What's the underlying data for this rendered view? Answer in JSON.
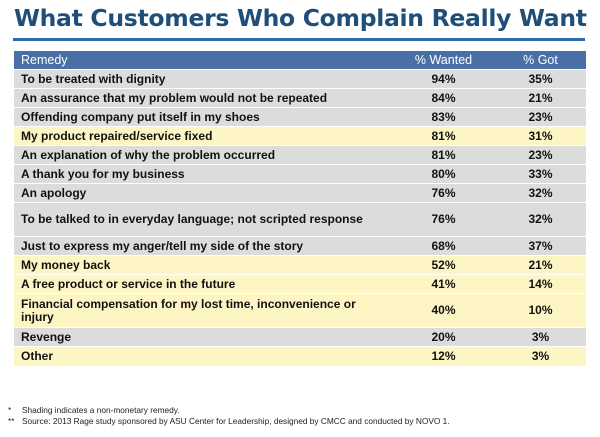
{
  "title": "What Customers Who Complain Really Want",
  "table_headers": [
    "Remedy",
    "% Wanted",
    "% Got"
  ],
  "chart_data": {
    "type": "table",
    "title": "What Customers Who Complain Really Want",
    "columns": [
      "Remedy",
      "% Wanted",
      "% Got"
    ],
    "rows": [
      {
        "remedy": "To be treated with dignity",
        "wanted": "94%",
        "got": "35%",
        "shaded": false
      },
      {
        "remedy": "An assurance that my problem would not be repeated",
        "wanted": "84%",
        "got": "21%",
        "shaded": false
      },
      {
        "remedy": "Offending company put itself in my shoes",
        "wanted": "83%",
        "got": "23%",
        "shaded": false
      },
      {
        "remedy": "My product repaired/service fixed",
        "wanted": "81%",
        "got": "31%",
        "shaded": true
      },
      {
        "remedy": "An explanation of why the problem occurred",
        "wanted": "81%",
        "got": "23%",
        "shaded": false
      },
      {
        "remedy": "A thank you for my business",
        "wanted": "80%",
        "got": "33%",
        "shaded": false
      },
      {
        "remedy": "An apology",
        "wanted": "76%",
        "got": "32%",
        "shaded": false
      },
      {
        "remedy": "To be talked to in everyday language; not scripted response",
        "wanted": "76%",
        "got": "32%",
        "shaded": false
      },
      {
        "remedy": "Just to express my anger/tell my side of the story",
        "wanted": "68%",
        "got": "37%",
        "shaded": false
      },
      {
        "remedy": "My money back",
        "wanted": "52%",
        "got": "21%",
        "shaded": true
      },
      {
        "remedy": "A free product or service in the future",
        "wanted": "41%",
        "got": "14%",
        "shaded": true
      },
      {
        "remedy": "Financial compensation for my lost time, inconvenience or injury",
        "wanted": "40%",
        "got": "10%",
        "shaded": true
      },
      {
        "remedy": "Revenge",
        "wanted": "20%",
        "got": "3%",
        "shaded": false
      },
      {
        "remedy": "Other",
        "wanted": "12%",
        "got": "3%",
        "shaded": true
      }
    ]
  },
  "colors": {
    "title": "#1f4e79",
    "header_bg": "#4a6fa5",
    "shaded_row": "#fdf5c4",
    "plain_row": "#dcdcdc"
  },
  "footnotes": [
    {
      "mark": "*",
      "text": "Shading  indicates a non-monetary remedy."
    },
    {
      "mark": "**",
      "text": "Source: 2013 Rage study sponsored by ASU Center for Leadership, designed by CMCC and conducted by NOVO 1."
    }
  ]
}
